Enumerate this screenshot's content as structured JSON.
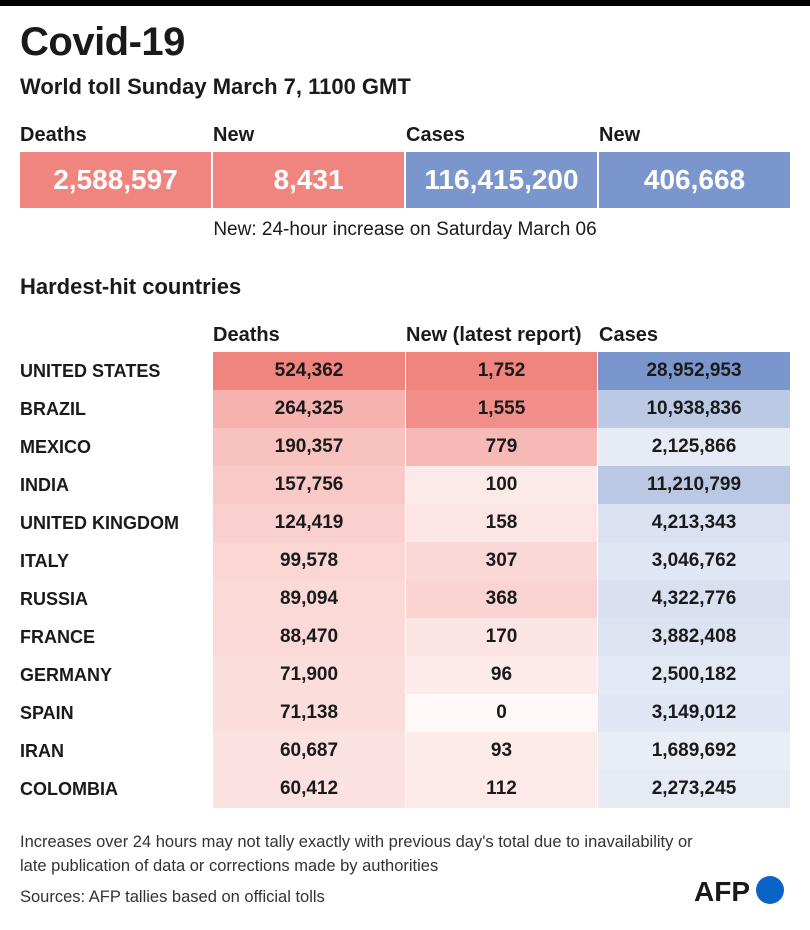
{
  "header": {
    "title": "Covid-19",
    "subtitle": "World toll Sunday March 7,  1100 GMT"
  },
  "summary": {
    "labels": [
      "Deaths",
      "New",
      "Cases",
      "New"
    ],
    "values": [
      "2,588,597",
      "8,431",
      "116,415,200",
      "406,668"
    ],
    "colors": [
      "#f0847f",
      "#f0847f",
      "#7b96cc",
      "#7b96cc"
    ],
    "note": "New: 24-hour increase on Saturday March 06"
  },
  "section_title": "Hardest-hit countries",
  "chart_data": {
    "type": "table",
    "title": "Hardest-hit countries",
    "columns": [
      "Deaths",
      "New (latest report)",
      "Cases"
    ],
    "rows": [
      {
        "country": "UNITED STATES",
        "deaths": 524362,
        "new": 1752,
        "cases": 28952953
      },
      {
        "country": "BRAZIL",
        "deaths": 264325,
        "new": 1555,
        "cases": 10938836
      },
      {
        "country": "MEXICO",
        "deaths": 190357,
        "new": 779,
        "cases": 2125866
      },
      {
        "country": "INDIA",
        "deaths": 157756,
        "new": 100,
        "cases": 11210799
      },
      {
        "country": "UNITED KINGDOM",
        "deaths": 124419,
        "new": 158,
        "cases": 4213343
      },
      {
        "country": "ITALY",
        "deaths": 99578,
        "new": 307,
        "cases": 3046762
      },
      {
        "country": "RUSSIA",
        "deaths": 89094,
        "new": 368,
        "cases": 4322776
      },
      {
        "country": "FRANCE",
        "deaths": 88470,
        "new": 170,
        "cases": 3882408
      },
      {
        "country": "GERMANY",
        "deaths": 71900,
        "new": 96,
        "cases": 2500182
      },
      {
        "country": "SPAIN",
        "deaths": 71138,
        "new": 0,
        "cases": 3149012
      },
      {
        "country": "IRAN",
        "deaths": 60687,
        "new": 93,
        "cases": 1689692
      },
      {
        "country": "COLOMBIA",
        "deaths": 60412,
        "new": 112,
        "cases": 2273245
      }
    ],
    "colors": {
      "deaths": "#f0847f",
      "new": "#f0847f",
      "cases": "#7b96cc"
    }
  },
  "footer": {
    "footnote": "Increases over 24 hours may not tally exactly with previous day's total due to inavailability or late publication of data or corrections made by authorities",
    "source": "Sources: AFP tallies based on official tolls",
    "logo_text": "AFP",
    "logo_color": "#0a64c8"
  }
}
